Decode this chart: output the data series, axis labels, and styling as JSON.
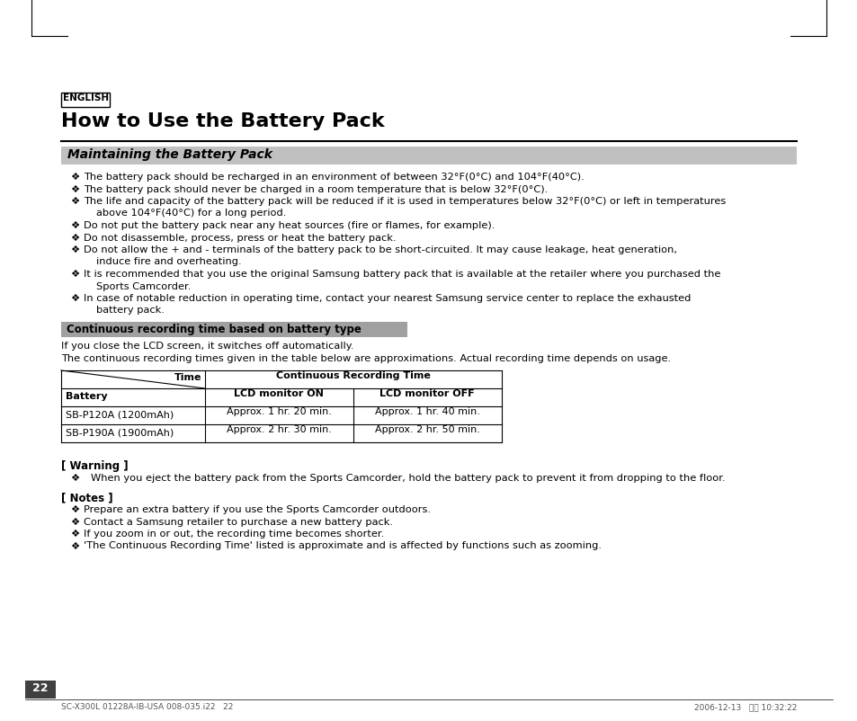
{
  "bg_color": "#ffffff",
  "title": "How to Use the Battery Pack",
  "section_header": "Maintaining the Battery Pack",
  "bullet_symbol": "❖",
  "bullet_lines": [
    [
      "The battery pack should be recharged in an environment of between 32°F(0°C) and 104°F(40°C)."
    ],
    [
      "The battery pack should never be charged in a room temperature that is below 32°F(0°C)."
    ],
    [
      "The life and capacity of the battery pack will be reduced if it is used in temperatures below 32°F(0°C) or left in temperatures",
      "above 104°F(40°C) for a long period."
    ],
    [
      "Do not put the battery pack near any heat sources (fire or flames, for example)."
    ],
    [
      "Do not disassemble, process, press or heat the battery pack."
    ],
    [
      "Do not allow the + and - terminals of the battery pack to be short-circuited. It may cause leakage, heat generation,",
      "induce fire and overheating."
    ],
    [
      "It is recommended that you use the original Samsung battery pack that is available at the retailer where you purchased the",
      "Sports Camcorder."
    ],
    [
      "In case of notable reduction in operating time, contact your nearest Samsung service center to replace the exhausted",
      "battery pack."
    ]
  ],
  "subheader": "Continuous recording time based on battery type",
  "note1": "If you close the LCD screen, it switches off automatically.",
  "note2": "The continuous recording times given in the table below are approximations. Actual recording time depends on usage.",
  "table_rows": [
    [
      "SB-P120A (1200mAh)",
      "Approx. 1 hr. 20 min.",
      "Approx. 1 hr. 40 min."
    ],
    [
      "SB-P190A (1900mAh)",
      "Approx. 2 hr. 30 min.",
      "Approx. 2 hr. 50 min."
    ]
  ],
  "warning_header": "[ Warning ]",
  "warning_text": "When you eject the battery pack from the Sports Camcorder, hold the battery pack to prevent it from dropping to the floor.",
  "notes_header": "[ Notes ]",
  "notes_bullets": [
    "Prepare an extra battery if you use the Sports Camcorder outdoors.",
    "Contact a Samsung retailer to purchase a new battery pack.",
    "If you zoom in or out, the recording time becomes shorter.",
    "'The Continuous Recording Time' listed is approximate and is affected by functions such as zooming."
  ],
  "page_number": "22",
  "footer_left": "SC-X300L 01228A-IB-USA 008-035.i22   22",
  "footer_right": "2006-12-13   오전 10:32:22"
}
